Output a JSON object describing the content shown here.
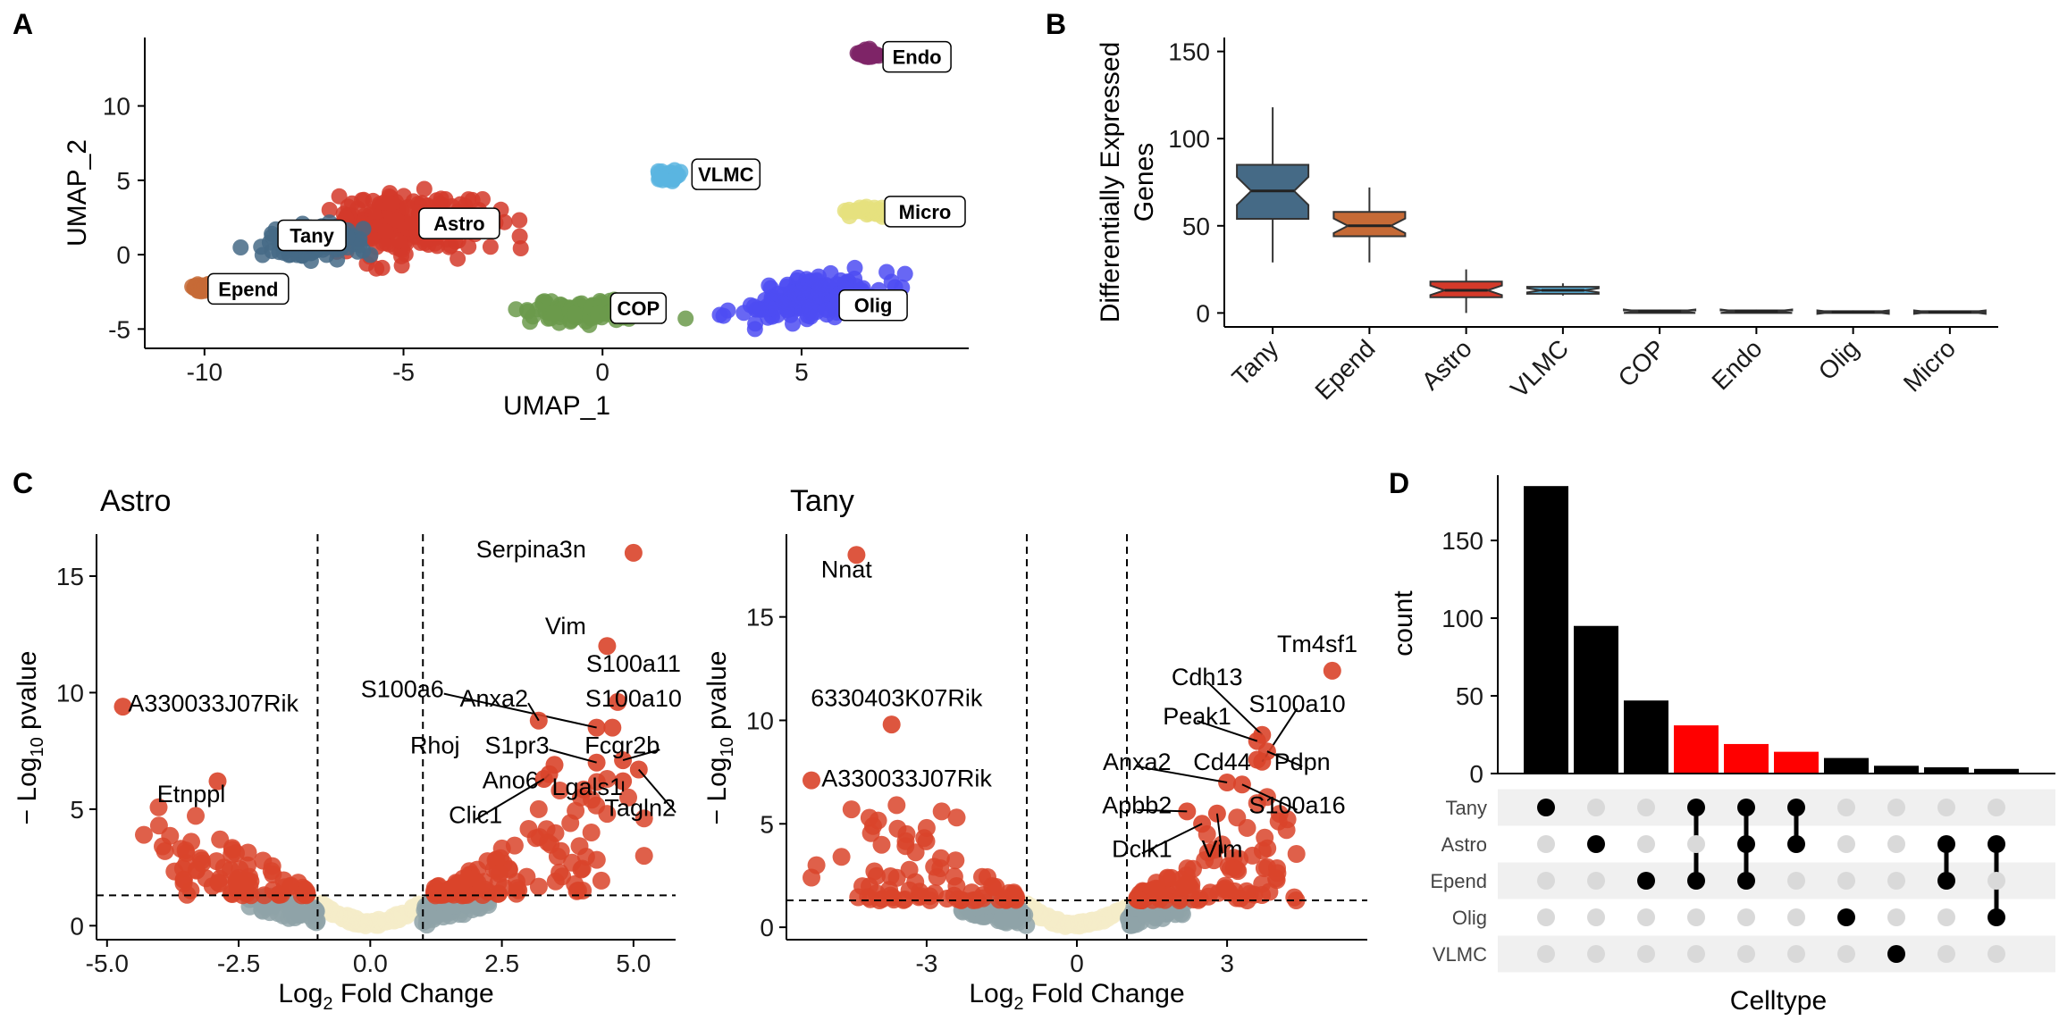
{
  "panel_labels": [
    "A",
    "B",
    "C",
    "D"
  ],
  "colors": {
    "Astro": "#d43a2a",
    "Tany": "#456a86",
    "Epend": "#c66a36",
    "COP": "#6b9a4b",
    "Olig": "#4d4cf2",
    "VLMC": "#5bb5e0",
    "Micro": "#e5e07e",
    "Endo": "#7e2467",
    "sig": "#d9442a",
    "up_grey": "#8fa3a8",
    "ns_beige": "#f5ecc9",
    "set_bar": "#000000",
    "set_bar_highlight": "#ff0000",
    "dot_on": "#000000",
    "dot_off": "#d9d9d9",
    "matrix_band": "#f0f0f0"
  },
  "chart_data": [
    {
      "id": "A",
      "type": "scatter",
      "xlabel": "UMAP_1",
      "ylabel": "UMAP_2",
      "xlim": [
        -11.5,
        9.2
      ],
      "ylim": [
        -6.3,
        14.6
      ],
      "x_ticks": [
        -10,
        -5,
        0,
        5
      ],
      "x_tick_labels": [
        "-10",
        "-5",
        "0",
        "5"
      ],
      "y_ticks": [
        -5,
        0,
        5,
        10
      ],
      "y_tick_labels": [
        "-5",
        "0",
        "5",
        "10"
      ],
      "clusters": [
        {
          "name": "Astro",
          "center": [
            -5.0,
            2.0
          ],
          "spread": [
            2.1,
            2.3
          ],
          "label_pos": [
            -3.6,
            2.1
          ]
        },
        {
          "name": "Tany",
          "center": [
            -7.2,
            0.8
          ],
          "spread": [
            1.4,
            1.2
          ],
          "label_pos": [
            -7.3,
            1.3
          ]
        },
        {
          "name": "Epend",
          "center": [
            -10.0,
            -2.2
          ],
          "spread": [
            0.4,
            0.3
          ],
          "label_pos": [
            -8.9,
            -2.3
          ]
        },
        {
          "name": "COP",
          "center": [
            -0.3,
            -3.8
          ],
          "spread": [
            1.7,
            0.8
          ],
          "label_pos": [
            0.9,
            -3.6
          ]
        },
        {
          "name": "Olig",
          "center": [
            5.2,
            -3.0
          ],
          "spread": [
            2.1,
            1.5
          ],
          "label_pos": [
            6.8,
            -3.4
          ]
        },
        {
          "name": "VLMC",
          "center": [
            1.7,
            5.3
          ],
          "spread": [
            0.35,
            0.4
          ],
          "label_pos": [
            3.1,
            5.4
          ]
        },
        {
          "name": "Micro",
          "center": [
            6.8,
            2.9
          ],
          "spread": [
            0.9,
            0.4
          ],
          "label_pos": [
            8.1,
            2.9
          ]
        },
        {
          "name": "Endo",
          "center": [
            6.7,
            13.5
          ],
          "spread": [
            0.3,
            0.25
          ],
          "label_pos": [
            7.9,
            13.3
          ]
        }
      ]
    },
    {
      "id": "B",
      "type": "boxplot",
      "ylabel": "Differentially Expressed Genes",
      "ylim": [
        -8,
        158
      ],
      "y_ticks": [
        0,
        50,
        100,
        150
      ],
      "y_tick_labels": [
        "0",
        "50",
        "100",
        "150"
      ],
      "categories": [
        "Tany",
        "Epend",
        "Astro",
        "VLMC",
        "COP",
        "Endo",
        "Olig",
        "Micro"
      ],
      "boxes": [
        {
          "min": 29,
          "q1": 54,
          "median": 70,
          "q3": 85,
          "max": 118
        },
        {
          "min": 29,
          "q1": 44,
          "median": 50,
          "q3": 58,
          "max": 72
        },
        {
          "min": 0,
          "q1": 9,
          "median": 13,
          "q3": 18,
          "max": 25
        },
        {
          "min": 10,
          "q1": 11,
          "median": 13,
          "q3": 15,
          "max": 17
        },
        {
          "min": 0,
          "q1": 0,
          "median": 1,
          "q3": 1.5,
          "max": 2
        },
        {
          "min": 0,
          "q1": 0,
          "median": 1,
          "q3": 1.5,
          "max": 2
        },
        {
          "min": 0,
          "q1": 0,
          "median": 0.5,
          "q3": 1,
          "max": 1.5
        },
        {
          "min": 0,
          "q1": 0,
          "median": 0.5,
          "q3": 1,
          "max": 1.5
        }
      ]
    },
    {
      "id": "C-Astro",
      "type": "scatter",
      "title": "Astro",
      "xlabel": "Fold Change",
      "ylabel": "pvalue",
      "xlim": [
        -5.2,
        5.8
      ],
      "ylim": [
        -0.6,
        16.8
      ],
      "x_ticks": [
        -5,
        -2.5,
        0,
        2.5,
        5
      ],
      "x_tick_labels": [
        "-5.0",
        "-2.5",
        "0.0",
        "2.5",
        "5.0"
      ],
      "y_ticks": [
        0,
        5,
        10,
        15
      ],
      "y_tick_labels": [
        "0",
        "5",
        "10",
        "15"
      ],
      "fc_threshold": 1,
      "p_threshold": 1.3,
      "labeled_genes": [
        {
          "gene": "Serpina3n",
          "x": 5.0,
          "y": 16.0,
          "tx": 4.1,
          "ty": 15.8,
          "anchor": "end",
          "line": false
        },
        {
          "gene": "Vim",
          "x": 4.5,
          "y": 12.0,
          "tx": 4.1,
          "ty": 12.5,
          "anchor": "end",
          "line": false
        },
        {
          "gene": "S100a11",
          "x": 4.7,
          "y": 9.6,
          "tx": 5.0,
          "ty": 10.9,
          "anchor": "middle",
          "line": false
        },
        {
          "gene": "S100a10",
          "x": 4.6,
          "y": 8.5,
          "tx": 5.0,
          "ty": 9.4,
          "anchor": "middle",
          "line": false
        },
        {
          "gene": "S100a6",
          "x": 4.3,
          "y": 8.5,
          "tx": 1.4,
          "ty": 9.8,
          "anchor": "end",
          "line": true
        },
        {
          "gene": "Anxa2",
          "x": 3.2,
          "y": 8.8,
          "tx": 3.0,
          "ty": 9.4,
          "anchor": "end",
          "line": true
        },
        {
          "gene": "Fcgr2b",
          "x": 4.8,
          "y": 7.1,
          "tx": 5.5,
          "ty": 7.4,
          "anchor": "end",
          "line": true
        },
        {
          "gene": "S1pr3",
          "x": 4.3,
          "y": 7.0,
          "tx": 3.4,
          "ty": 7.4,
          "anchor": "end",
          "line": true
        },
        {
          "gene": "Rhoj",
          "x": 3.5,
          "y": 6.9,
          "tx": 1.7,
          "ty": 7.4,
          "anchor": "end",
          "line": false
        },
        {
          "gene": "Ano6",
          "x": 3.4,
          "y": 6.5,
          "tx": 3.2,
          "ty": 5.9,
          "anchor": "end",
          "line": true
        },
        {
          "gene": "Lgals1",
          "x": 4.8,
          "y": 6.2,
          "tx": 4.8,
          "ty": 5.6,
          "anchor": "end",
          "line": true
        },
        {
          "gene": "Tagln2",
          "x": 5.1,
          "y": 6.7,
          "tx": 5.8,
          "ty": 4.7,
          "anchor": "end",
          "line": true
        },
        {
          "gene": "Clic1",
          "x": 3.3,
          "y": 6.3,
          "tx": 2.0,
          "ty": 4.4,
          "anchor": "middle",
          "line": true
        },
        {
          "gene": "A330033J07Rik",
          "x": -4.7,
          "y": 9.4,
          "tx": -4.6,
          "ty": 9.2,
          "anchor": "start",
          "line": false
        },
        {
          "gene": "Etnppl",
          "x": -2.9,
          "y": 6.2,
          "tx": -3.4,
          "ty": 5.3,
          "anchor": "middle",
          "line": false
        }
      ],
      "outer_points": [
        [
          -4.3,
          3.9
        ],
        [
          -3.4,
          3.6
        ],
        [
          -3.6,
          3.3
        ],
        [
          -3.9,
          3.2
        ],
        [
          -3.2,
          2.8
        ],
        [
          -3.3,
          2.4
        ],
        [
          5.2,
          4.6
        ],
        [
          5.2,
          3.0
        ],
        [
          4.9,
          5.5
        ],
        [
          4.5,
          6.3
        ],
        [
          3.8,
          4.4
        ],
        [
          4.0,
          5.5
        ],
        [
          4.5,
          4.8
        ],
        [
          3.6,
          5.8
        ],
        [
          3.2,
          5.0
        ],
        [
          4.2,
          4.0
        ]
      ]
    },
    {
      "id": "C-Tany",
      "type": "scatter",
      "title": "Tany",
      "xlabel": "Fold Change",
      "ylabel": "pvalue",
      "xlim": [
        -5.8,
        5.8
      ],
      "ylim": [
        -0.6,
        19.0
      ],
      "x_ticks": [
        -3,
        0,
        3
      ],
      "x_tick_labels": [
        "-3",
        "0",
        "3"
      ],
      "y_ticks": [
        0,
        5,
        10,
        15
      ],
      "y_tick_labels": [
        "0",
        "5",
        "10",
        "15"
      ],
      "fc_threshold": 1,
      "p_threshold": 1.3,
      "labeled_genes": [
        {
          "gene": "Nnat",
          "x": -4.4,
          "y": 18.0,
          "tx": -4.6,
          "ty": 16.9,
          "anchor": "middle",
          "line": false
        },
        {
          "gene": "6330403K07Rik",
          "x": -3.7,
          "y": 9.8,
          "tx": -3.6,
          "ty": 10.7,
          "anchor": "middle",
          "line": false
        },
        {
          "gene": "A330033J07Rik",
          "x": -5.3,
          "y": 7.1,
          "tx": -5.1,
          "ty": 6.8,
          "anchor": "start",
          "line": false
        },
        {
          "gene": "Tm4sf1",
          "x": 5.1,
          "y": 12.4,
          "tx": 4.8,
          "ty": 13.3,
          "anchor": "middle",
          "line": false
        },
        {
          "gene": "Cdh13",
          "x": 3.7,
          "y": 9.3,
          "tx": 2.6,
          "ty": 11.7,
          "anchor": "middle",
          "line": true
        },
        {
          "gene": "S100a10",
          "x": 3.7,
          "y": 8.0,
          "tx": 4.4,
          "ty": 10.4,
          "anchor": "middle",
          "line": true
        },
        {
          "gene": "Peak1",
          "x": 3.6,
          "y": 9.0,
          "tx": 2.4,
          "ty": 9.8,
          "anchor": "middle",
          "line": true
        },
        {
          "gene": "Anxa2",
          "x": 3.0,
          "y": 7.0,
          "tx": 1.2,
          "ty": 7.6,
          "anchor": "middle",
          "line": true
        },
        {
          "gene": "Cd44",
          "x": 3.6,
          "y": 8.1,
          "tx": 2.9,
          "ty": 7.6,
          "anchor": "middle",
          "line": false
        },
        {
          "gene": "Pdpn",
          "x": 3.8,
          "y": 8.5,
          "tx": 4.5,
          "ty": 7.6,
          "anchor": "middle",
          "line": true
        },
        {
          "gene": "Apbb2",
          "x": 2.2,
          "y": 5.6,
          "tx": 1.2,
          "ty": 5.5,
          "anchor": "middle",
          "line": true
        },
        {
          "gene": "S100a16",
          "x": 3.3,
          "y": 6.9,
          "tx": 4.4,
          "ty": 5.5,
          "anchor": "middle",
          "line": true
        },
        {
          "gene": "Dclk1",
          "x": 2.5,
          "y": 5.0,
          "tx": 1.3,
          "ty": 3.4,
          "anchor": "middle",
          "line": true
        },
        {
          "gene": "Vim",
          "x": 2.8,
          "y": 5.5,
          "tx": 2.9,
          "ty": 3.4,
          "anchor": "middle",
          "line": true
        }
      ],
      "outer_points": [
        [
          -5.2,
          3.0
        ],
        [
          -5.3,
          2.4
        ],
        [
          -4.5,
          5.7
        ],
        [
          -3.6,
          5.9
        ],
        [
          -2.7,
          5.6
        ],
        [
          -3.4,
          4.5
        ],
        [
          -4.7,
          3.4
        ],
        [
          -2.4,
          5.3
        ],
        [
          -3.0,
          4.8
        ],
        [
          3.4,
          4.8
        ],
        [
          3.8,
          6.3
        ],
        [
          2.6,
          4.5
        ],
        [
          3.6,
          6.0
        ],
        [
          2.9,
          4.0
        ],
        [
          3.2,
          5.3
        ]
      ]
    },
    {
      "id": "D",
      "type": "bar",
      "xlabel": "Celltype",
      "ylabel": "count",
      "ylim": [
        0,
        192
      ],
      "y_ticks": [
        0,
        50,
        100,
        150
      ],
      "y_tick_labels": [
        "0",
        "50",
        "100",
        "150"
      ],
      "values": [
        185,
        95,
        47,
        31,
        19,
        14,
        10,
        5,
        4,
        3
      ],
      "highlighted": [
        false,
        false,
        false,
        true,
        true,
        true,
        false,
        false,
        false,
        false
      ],
      "sets": [
        "Tany",
        "Astro",
        "Epend",
        "Olig",
        "VLMC"
      ],
      "membership": [
        [
          0
        ],
        [
          1
        ],
        [
          2
        ],
        [
          0,
          2
        ],
        [
          0,
          1,
          2
        ],
        [
          0,
          1
        ],
        [
          3
        ],
        [
          4
        ],
        [
          1,
          2
        ],
        [
          1,
          3
        ]
      ]
    }
  ]
}
